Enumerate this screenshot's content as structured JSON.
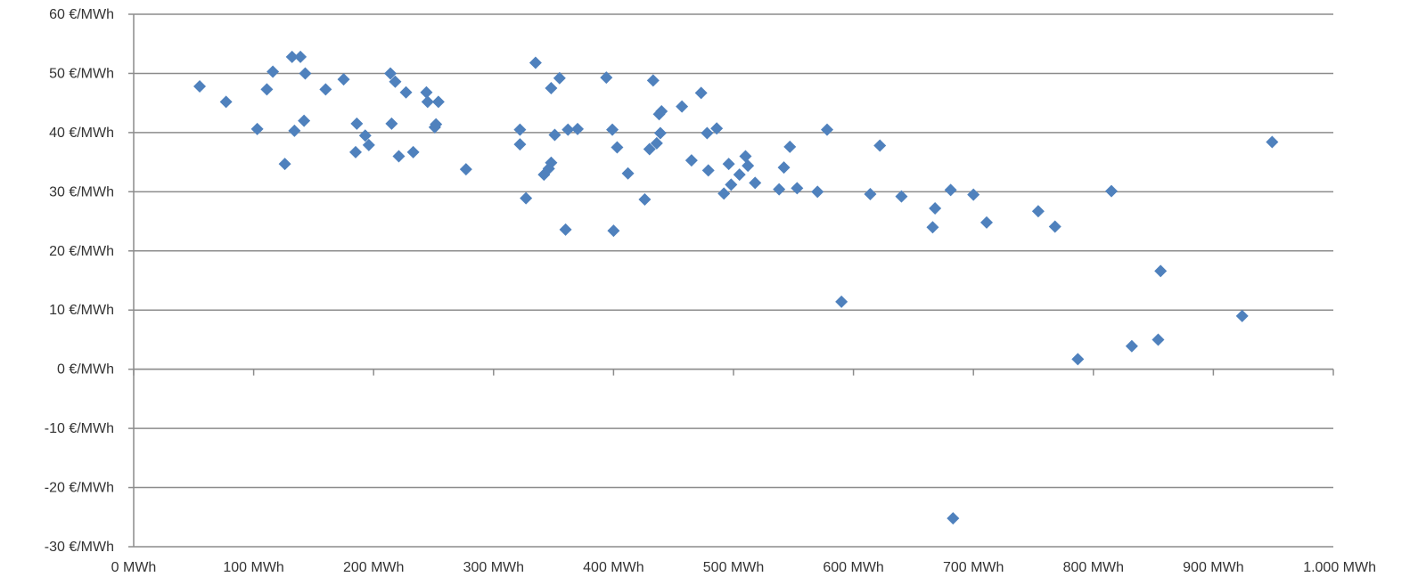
{
  "chart_data": {
    "type": "scatter",
    "title": "",
    "xlabel": "",
    "ylabel": "",
    "xlim": [
      0,
      1000
    ],
    "ylim": [
      -30,
      60
    ],
    "x_ticks": [
      0,
      100,
      200,
      300,
      400,
      500,
      600,
      700,
      800,
      900,
      1000
    ],
    "x_tick_labels": [
      "0 MWh",
      "100 MWh",
      "200 MWh",
      "300 MWh",
      "400 MWh",
      "500 MWh",
      "600 MWh",
      "700 MWh",
      "800 MWh",
      "900 MWh",
      "1.000 MWh"
    ],
    "y_ticks": [
      -30,
      -20,
      -10,
      0,
      10,
      20,
      30,
      40,
      50,
      60
    ],
    "y_tick_labels": [
      "-30 €/MWh",
      "-20 €/MWh",
      "-10 €/MWh",
      "0 €/MWh",
      "10 €/MWh",
      "20 €/MWh",
      "30 €/MWh",
      "40 €/MWh",
      "50 €/MWh",
      "60 €/MWh"
    ],
    "grid": true,
    "legend": "none",
    "marker_color": "#4f81bd",
    "series": [
      {
        "x": [
          55,
          77,
          103,
          111,
          116,
          126,
          132,
          134,
          139,
          142,
          143,
          160,
          175,
          185,
          186,
          193,
          196,
          214,
          215,
          218,
          221,
          227,
          233,
          244,
          245,
          251,
          252,
          254,
          277,
          322,
          322,
          327,
          335,
          342,
          346,
          348,
          348,
          351,
          355,
          360,
          362,
          370,
          394,
          399,
          400,
          403,
          412,
          426,
          430,
          433,
          436,
          438,
          439,
          440,
          457,
          465,
          473,
          478,
          479,
          486,
          492,
          496,
          498,
          505,
          510,
          512,
          518,
          538,
          542,
          547,
          553,
          570,
          578,
          590,
          614,
          622,
          640,
          666,
          668,
          681,
          683,
          700,
          711,
          754,
          768,
          787,
          815,
          832,
          854,
          856,
          924,
          949
        ],
        "y": [
          47.8,
          45.2,
          40.6,
          47.3,
          50.3,
          34.7,
          52.8,
          40.3,
          52.8,
          42.0,
          50.0,
          47.3,
          49.0,
          36.7,
          41.5,
          39.5,
          37.9,
          50.0,
          41.5,
          48.6,
          36.0,
          46.8,
          36.7,
          46.8,
          45.2,
          40.9,
          41.4,
          45.2,
          33.8,
          40.5,
          38.0,
          28.9,
          51.8,
          32.9,
          33.9,
          34.9,
          47.5,
          39.6,
          49.2,
          23.6,
          40.5,
          40.6,
          49.3,
          40.5,
          23.4,
          37.5,
          33.1,
          28.7,
          37.2,
          48.8,
          38.2,
          43.1,
          39.9,
          43.6,
          44.4,
          35.3,
          46.7,
          39.9,
          33.6,
          40.7,
          29.7,
          34.7,
          31.2,
          32.9,
          36.0,
          34.4,
          31.5,
          30.4,
          34.1,
          37.6,
          30.6,
          30.0,
          40.5,
          11.4,
          29.6,
          37.8,
          29.2,
          24.0,
          27.2,
          30.3,
          -25.2,
          29.5,
          24.8,
          26.7,
          24.1,
          1.7,
          30.1,
          3.9,
          5.0,
          16.6,
          9.0,
          38.4
        ]
      }
    ]
  }
}
